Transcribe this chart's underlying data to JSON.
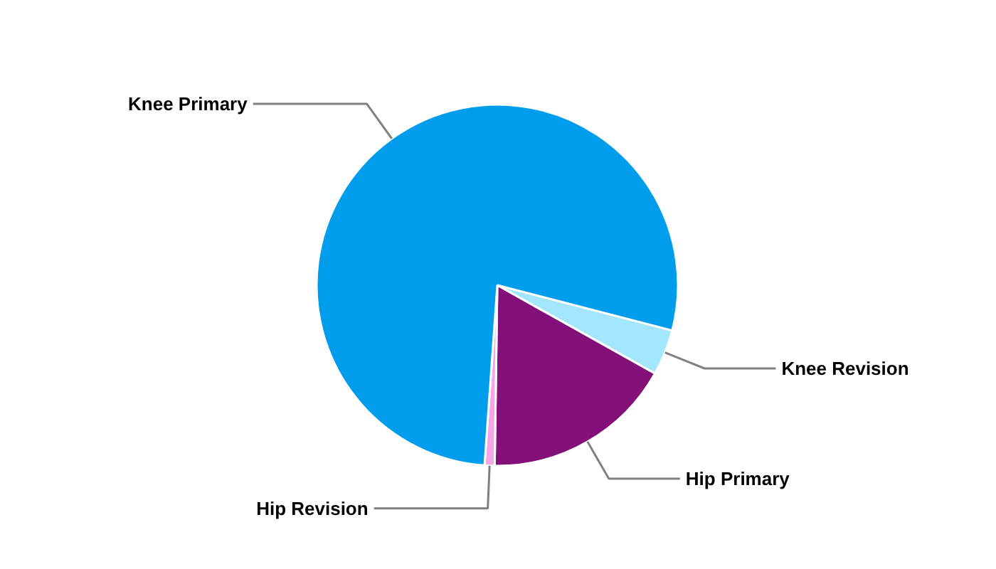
{
  "chart_data": {
    "type": "pie",
    "categories": [
      "Knee Revision",
      "Hip Primary",
      "Hip Revision",
      "Knee Primary"
    ],
    "values": [
      4.1,
      17.1,
      0.9,
      77.9
    ],
    "colors": [
      "#a4e7fd",
      "#830f79",
      "#f5a6e8",
      "#009ded"
    ]
  }
}
